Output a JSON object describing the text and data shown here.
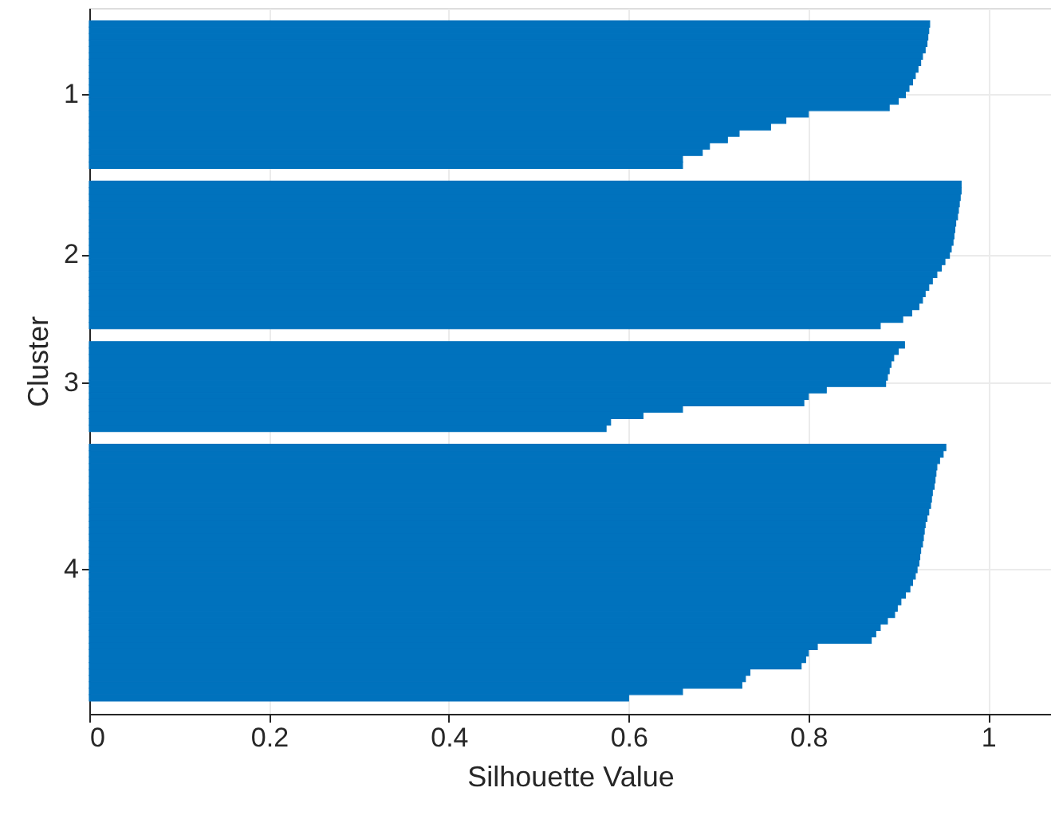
{
  "chart_data": {
    "type": "bar",
    "orientation": "horizontal",
    "xlabel": "Silhouette Value",
    "ylabel": "Cluster",
    "color": "#0072bd",
    "xlim": [
      0,
      1.07
    ],
    "xticks": [
      0,
      0.2,
      0.4,
      0.6,
      0.8,
      1
    ],
    "grid": true,
    "categories": [
      null,
      null,
      null,
      null,
      null,
      null,
      null,
      null,
      null,
      null,
      null,
      null,
      null,
      "1",
      null,
      null,
      null,
      null,
      null,
      null,
      null,
      null,
      null,
      null,
      null,
      null,
      null,
      null,
      null,
      null,
      null,
      null,
      null,
      null,
      null,
      null,
      null,
      null,
      "2",
      null,
      null,
      null,
      null,
      null,
      null,
      null,
      null,
      null,
      null,
      null,
      null,
      null,
      null,
      null,
      null,
      null,
      null,
      null,
      "3",
      null,
      null,
      null,
      null,
      null,
      null,
      null,
      null,
      null,
      null,
      null,
      null,
      null,
      null,
      null,
      null,
      null,
      null,
      null,
      null,
      null,
      null,
      null,
      null,
      null,
      null,
      null,
      null,
      "4",
      null,
      null,
      null,
      null,
      null,
      null,
      null,
      null,
      null,
      null,
      null,
      null,
      null,
      null,
      null,
      null,
      null,
      null,
      null,
      null,
      null,
      null
    ],
    "values": [
      null,
      null,
      0.935,
      0.934,
      0.933,
      0.932,
      0.93,
      0.927,
      0.925,
      0.922,
      0.919,
      0.916,
      0.912,
      0.908,
      0.9,
      0.89,
      0.8,
      0.775,
      0.758,
      0.723,
      0.71,
      0.69,
      0.682,
      0.66,
      0.66,
      null,
      null,
      0.97,
      0.97,
      0.969,
      0.968,
      0.967,
      0.966,
      0.964,
      0.963,
      0.962,
      0.961,
      0.959,
      0.957,
      0.952,
      0.948,
      0.943,
      0.938,
      0.934,
      0.93,
      0.927,
      0.923,
      0.915,
      0.905,
      0.88,
      null,
      null,
      0.907,
      0.9,
      0.895,
      0.892,
      0.89,
      0.888,
      0.886,
      0.82,
      0.8,
      0.795,
      0.66,
      0.616,
      0.58,
      0.575,
      null,
      null,
      0.953,
      0.95,
      0.946,
      0.943,
      0.942,
      0.941,
      0.94,
      0.938,
      0.937,
      0.936,
      0.934,
      0.932,
      0.93,
      0.929,
      0.928,
      0.927,
      0.925,
      0.924,
      0.923,
      0.921,
      0.919,
      0.916,
      0.913,
      0.908,
      0.903,
      0.899,
      0.896,
      0.888,
      0.88,
      0.875,
      0.87,
      0.81,
      0.8,
      0.797,
      0.792,
      0.735,
      0.73,
      0.726,
      0.66,
      0.6,
      null,
      null
    ]
  }
}
